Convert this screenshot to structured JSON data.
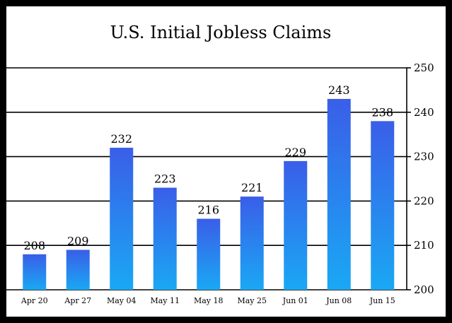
{
  "chart_data": {
    "type": "bar",
    "title": "U.S. Initial Jobless Claims",
    "xlabel": "",
    "ylabel": "",
    "categories": [
      "Apr 20",
      "Apr 27",
      "May 04",
      "May 11",
      "May 18",
      "May 25",
      "Jun 01",
      "Jun 08",
      "Jun 15"
    ],
    "values": [
      208,
      209,
      232,
      223,
      216,
      221,
      229,
      243,
      238
    ],
    "data_labels": [
      "208",
      "209",
      "232",
      "223",
      "216",
      "221",
      "229",
      "243",
      "238"
    ],
    "ylim": [
      200,
      250
    ],
    "yticks": [
      200,
      210,
      220,
      230,
      240,
      250
    ],
    "ytick_labels": [
      "200",
      "210",
      "220",
      "230",
      "240",
      "250"
    ],
    "y_axis_position": "right",
    "grid": true,
    "legend": false,
    "colors": {
      "bar_bottom": "#1aa8f4",
      "bar_top": "#3a5ee8",
      "background": "#ffffff",
      "frame": "#000000",
      "gridline": "#000000"
    }
  }
}
